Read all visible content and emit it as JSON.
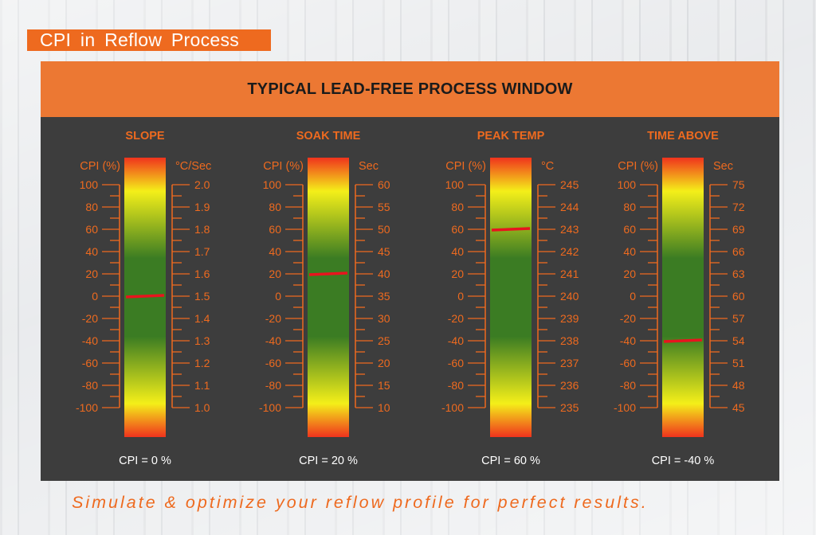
{
  "page_title": "CPI  in  Reflow  Process",
  "panel_title": "TYPICAL LEAD-FREE PROCESS WINDOW",
  "tagline": "Simulate & optimize your reflow profile for perfect results.",
  "colors": {
    "accent": "#ee6a1f",
    "header": "#ec7833",
    "panel": "#3d3d3d",
    "marker": "#e8141e",
    "bar_red": "#f0331d",
    "bar_yellow": "#f4ef19",
    "bar_green": "#3b7c23"
  },
  "cpi_axis": {
    "label": "CPI (%)",
    "ticks": [
      "100",
      "80",
      "60",
      "40",
      "20",
      "0",
      "-20",
      "-40",
      "-60",
      "-80",
      "-100"
    ],
    "min": -100,
    "max": 100
  },
  "gauges": [
    {
      "title": "SLOPE",
      "unit": "°C/Sec",
      "unit_ticks": [
        "2.0",
        "1.9",
        "1.8",
        "1.7",
        "1.6",
        "1.5",
        "1.4",
        "1.3",
        "1.2",
        "1.1",
        "1.0"
      ],
      "cpi": 0,
      "readout": "CPI = 0 %"
    },
    {
      "title": "SOAK TIME",
      "unit": "Sec",
      "unit_ticks": [
        "60",
        "55",
        "50",
        "45",
        "40",
        "35",
        "30",
        "25",
        "20",
        "15",
        "10"
      ],
      "cpi": 20,
      "readout": "CPI = 20 %"
    },
    {
      "title": "PEAK TEMP",
      "unit": "°C",
      "unit_ticks": [
        "245",
        "244",
        "243",
        "242",
        "241",
        "240",
        "239",
        "238",
        "237",
        "236",
        "235"
      ],
      "cpi": 60,
      "readout": "CPI = 60 %"
    },
    {
      "title": "TIME ABOVE",
      "unit": "Sec",
      "unit_ticks": [
        "75",
        "72",
        "69",
        "66",
        "63",
        "60",
        "57",
        "54",
        "51",
        "48",
        "45"
      ],
      "cpi": -40,
      "readout": "CPI = -40 %"
    }
  ]
}
